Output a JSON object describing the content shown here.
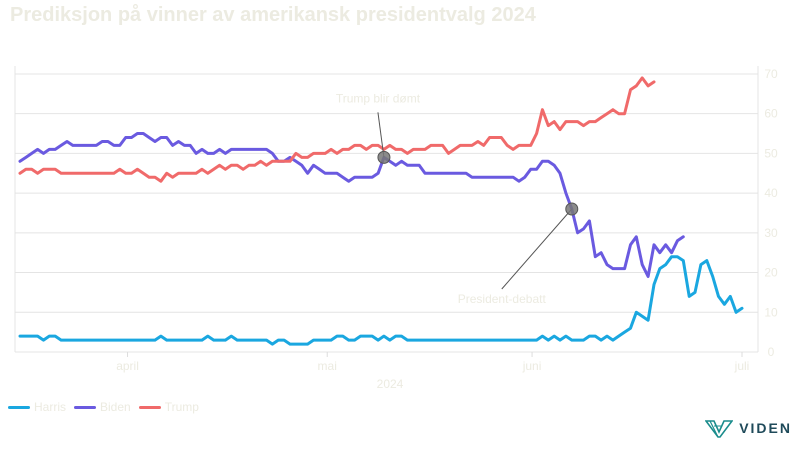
{
  "chart_data": {
    "type": "line",
    "title": "Prediksjon på vinner av amerikansk presidentvalg 2024",
    "ylim": [
      0,
      72
    ],
    "yticks": [
      0,
      10,
      20,
      30,
      40,
      50,
      60,
      70
    ],
    "grid": true,
    "x_tick_labels": [
      "april",
      "mai",
      "juni",
      "juli"
    ],
    "x_year_label": "2024",
    "legend_position": "bottom-left",
    "colors": {
      "Harris": "#1aa7e0",
      "Biden": "#6a5ae0",
      "Trump": "#f06a6a"
    },
    "series": [
      {
        "name": "Harris",
        "values": [
          4,
          4,
          4,
          4,
          3,
          4,
          4,
          3,
          3,
          3,
          3,
          3,
          3,
          3,
          3,
          3,
          3,
          3,
          3,
          3,
          3,
          3,
          3,
          3,
          4,
          3,
          3,
          3,
          3,
          3,
          3,
          3,
          4,
          3,
          3,
          3,
          4,
          3,
          3,
          3,
          3,
          3,
          3,
          2,
          3,
          3,
          2,
          2,
          2,
          2,
          3,
          3,
          3,
          3,
          4,
          4,
          3,
          3,
          4,
          4,
          4,
          3,
          4,
          3,
          4,
          4,
          3,
          3,
          3,
          3,
          3,
          3,
          3,
          3,
          3,
          3,
          3,
          3,
          3,
          3,
          3,
          3,
          3,
          3,
          3,
          3,
          3,
          3,
          3,
          4,
          3,
          4,
          3,
          4,
          3,
          3,
          3,
          4,
          4,
          3,
          4,
          3,
          4,
          5,
          6,
          10,
          9,
          8,
          17,
          21,
          22,
          24,
          24,
          23,
          14,
          15,
          22,
          23,
          19,
          14,
          12,
          14,
          10,
          11
        ]
      },
      {
        "name": "Biden",
        "values": [
          48,
          49,
          50,
          51,
          50,
          51,
          51,
          52,
          53,
          52,
          52,
          52,
          52,
          52,
          53,
          53,
          52,
          52,
          54,
          54,
          55,
          55,
          54,
          53,
          54,
          54,
          52,
          53,
          52,
          52,
          50,
          51,
          50,
          50,
          51,
          50,
          51,
          51,
          51,
          51,
          51,
          51,
          51,
          50,
          48,
          48,
          49,
          48,
          47,
          45,
          47,
          46,
          45,
          45,
          45,
          44,
          43,
          44,
          44,
          44,
          44,
          45,
          49,
          48,
          47,
          48,
          47,
          47,
          47,
          45,
          45,
          45,
          45,
          45,
          45,
          45,
          45,
          44,
          44,
          44,
          44,
          44,
          44,
          44,
          44,
          43,
          44,
          46,
          46,
          48,
          48,
          47,
          45,
          40,
          36,
          30,
          31,
          33,
          24,
          25,
          22,
          21,
          21,
          21,
          27,
          29,
          22,
          19,
          27,
          25,
          27,
          25,
          28,
          29
        ]
      },
      {
        "name": "Trump",
        "values": [
          45,
          46,
          46,
          45,
          46,
          46,
          46,
          45,
          45,
          45,
          45,
          45,
          45,
          45,
          45,
          45,
          45,
          46,
          45,
          45,
          46,
          45,
          44,
          44,
          43,
          45,
          44,
          45,
          45,
          45,
          45,
          46,
          45,
          46,
          47,
          46,
          47,
          47,
          46,
          47,
          47,
          48,
          47,
          48,
          48,
          48,
          48,
          50,
          49,
          49,
          50,
          50,
          50,
          51,
          50,
          51,
          51,
          52,
          52,
          51,
          52,
          52,
          51,
          52,
          51,
          51,
          50,
          51,
          51,
          51,
          52,
          52,
          52,
          50,
          51,
          52,
          52,
          52,
          53,
          52,
          54,
          54,
          54,
          52,
          51,
          52,
          52,
          52,
          55,
          61,
          57,
          58,
          56,
          58,
          58,
          58,
          57,
          58,
          58,
          59,
          60,
          61,
          60,
          60,
          66,
          67,
          69,
          67,
          68
        ]
      }
    ],
    "annotations": [
      {
        "text": "Trump blir dømt",
        "series": "Biden",
        "index": 62
      },
      {
        "text": "President-debatt",
        "series": "Biden",
        "index": 94
      }
    ]
  },
  "legend": [
    {
      "label": "Harris",
      "color": "#1aa7e0"
    },
    {
      "label": "Biden",
      "color": "#6a5ae0"
    },
    {
      "label": "Trump",
      "color": "#f06a6a"
    }
  ],
  "logo": {
    "text": "VIDEN",
    "icon": "viden-logo-icon"
  }
}
